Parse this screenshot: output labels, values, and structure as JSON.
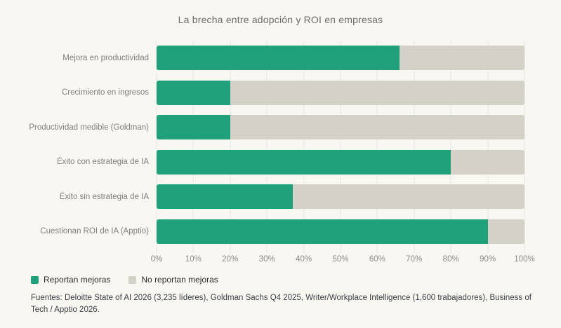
{
  "title": "La brecha entre adopción y ROI en empresas",
  "legend": [
    {
      "label": "Reportan mejoras",
      "color": "#21a179"
    },
    {
      "label": "No reportan mejoras",
      "color": "#d4d1c8"
    }
  ],
  "footer": "Fuentes: Deloitte State of AI 2026 (3,235 líderes), Goldman Sachs Q4 2025, Writer/Workplace Intelligence (1,600 trabajadores), Business of Tech / Apptio 2026.",
  "chart_data": {
    "type": "bar",
    "orientation": "horizontal",
    "stacked": true,
    "title": "La brecha entre adopción y ROI en empresas",
    "categories": [
      "Mejora en productividad",
      "Crecimiento en ingresos",
      "Productividad medible (Goldman)",
      "Éxito con estrategia de IA",
      "Éxito sin estrategia de IA",
      "Cuestionan ROI de IA (Apptio)"
    ],
    "series": [
      {
        "name": "Reportan mejoras",
        "color": "#21a179",
        "values": [
          66,
          20,
          20,
          80,
          37,
          90
        ]
      },
      {
        "name": "No reportan mejoras",
        "color": "#d4d1c8",
        "values": [
          34,
          80,
          80,
          20,
          63,
          10
        ]
      }
    ],
    "xlabel": "",
    "ylabel": "",
    "xlim": [
      0,
      100
    ],
    "xticks": [
      "0%",
      "10%",
      "20%",
      "30%",
      "40%",
      "50%",
      "60%",
      "70%",
      "80%",
      "90%",
      "100%"
    ],
    "grid": true,
    "legend_position": "bottom-left"
  },
  "colors": {
    "background": "#f9f7f1",
    "grid": "#e8e6e0",
    "title": "#6b6b6b",
    "label": "#80807c",
    "tick": "#8b8b87",
    "footer": "#3a3e47",
    "legend_text": "#2d2d2d"
  }
}
